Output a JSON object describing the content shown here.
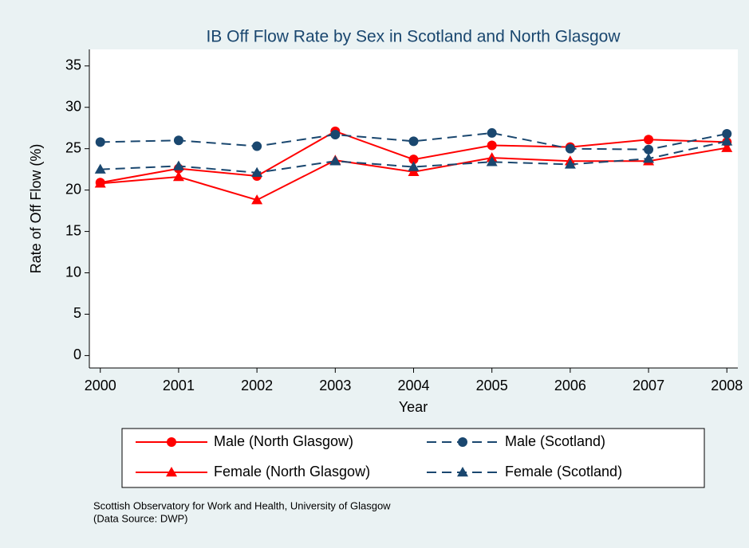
{
  "chart_data": {
    "type": "line",
    "title": "IB Off Flow Rate by Sex in Scotland and North Glasgow",
    "x_label": "Year",
    "y_label": "Rate of Off Flow (%)",
    "x": [
      2000,
      2001,
      2002,
      2003,
      2004,
      2005,
      2006,
      2007,
      2008
    ],
    "xlim": [
      1999.86,
      2008.14
    ],
    "xticks": [
      2000,
      2001,
      2002,
      2003,
      2004,
      2005,
      2006,
      2007,
      2008
    ],
    "ylim": [
      -1.5,
      37
    ],
    "yticks": [
      0,
      5,
      10,
      15,
      20,
      25,
      30,
      35
    ],
    "grid": false,
    "legend": "bottom",
    "series": [
      {
        "name": "Male (North Glasgow)",
        "color": "#ff0000",
        "marker": "circle",
        "dash": false,
        "values": [
          20.9,
          22.6,
          21.7,
          27.1,
          23.7,
          25.4,
          25.2,
          26.1,
          25.8
        ]
      },
      {
        "name": "Male (Scotland)",
        "color": "#1a476f",
        "marker": "circle",
        "dash": true,
        "values": [
          25.8,
          26.0,
          25.3,
          26.7,
          25.9,
          26.9,
          25.0,
          24.9,
          26.8
        ]
      },
      {
        "name": "Female (North Glasgow)",
        "color": "#ff0000",
        "marker": "triangle",
        "dash": false,
        "values": [
          20.8,
          21.6,
          18.8,
          23.6,
          22.2,
          23.9,
          23.5,
          23.5,
          25.1
        ]
      },
      {
        "name": "Female (Scotland)",
        "color": "#1a476f",
        "marker": "triangle",
        "dash": true,
        "values": [
          22.5,
          22.9,
          22.1,
          23.5,
          22.8,
          23.4,
          23.1,
          23.8,
          25.9
        ]
      }
    ],
    "notes": [
      "Scottish Observatory for Work and Health, University of Glasgow",
      "(Data Source: DWP)"
    ]
  }
}
